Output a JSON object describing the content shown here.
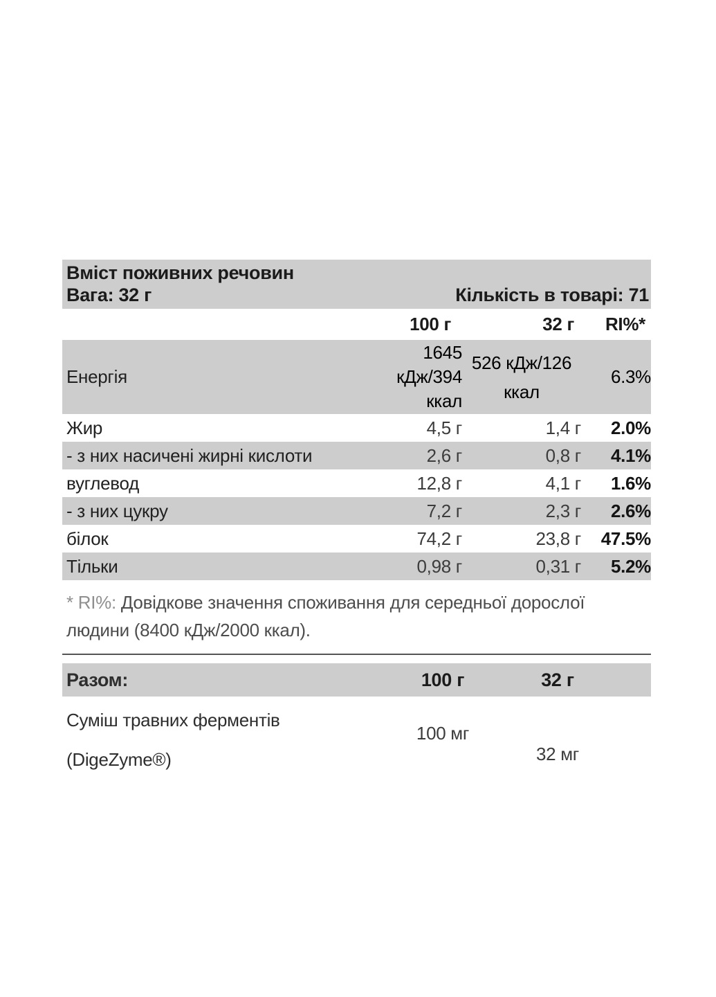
{
  "colors": {
    "row_shade": "#cdcdcd",
    "heading_text": "#1b1b1b",
    "value_text": "#3c3c3c",
    "footnote_prefix": "#8f8f8f",
    "footnote_text": "#4d4d4d"
  },
  "nutrition_table": {
    "title": "Вміст поживних речовин",
    "weight_label": "Вага: 32 г",
    "quantity_label": "Кількість в товарі: 71",
    "columns": [
      "100 г",
      "32 г",
      "RI%*"
    ],
    "rows": [
      {
        "label": "Енергія",
        "per100": "1645\nкДж/394\nккал",
        "per32": "526 кДж/126\nккал",
        "ri": "6.3%"
      },
      {
        "label": "Жир",
        "per100": "4,5 г",
        "per32": "1,4 г",
        "ri": "2.0%"
      },
      {
        "label": "- з них насичені жирні кислоти",
        "per100": "2,6 г",
        "per32": "0,8 г",
        "ri": "4.1%"
      },
      {
        "label": "вуглевод",
        "per100": "12,8 г",
        "per32": "4,1 г",
        "ri": "1.6%"
      },
      {
        "label": "- з них цукру",
        "per100": "7,2 г",
        "per32": "2,3 г",
        "ri": "2.6%"
      },
      {
        "label": "білок",
        "per100": "74,2 г",
        "per32": "23,8 г",
        "ri": "47.5%"
      },
      {
        "label": "Тільки",
        "per100": "0,98 г",
        "per32": "0,31 г",
        "ri": "5.2%"
      }
    ],
    "footnote_prefix": "* RI%: ",
    "footnote_text": "Довідкове значення споживання для середньої дорослої\nлюдини (8400 кДж/2000 ккал)."
  },
  "supplement_table": {
    "header": {
      "label": "Разом:",
      "col100": "100 г",
      "col32": "32 г"
    },
    "rows": [
      {
        "label": "Суміш травних ферментів\n(DigeZyme®)",
        "per100": "100 мг",
        "per32": "32 мг"
      }
    ]
  }
}
